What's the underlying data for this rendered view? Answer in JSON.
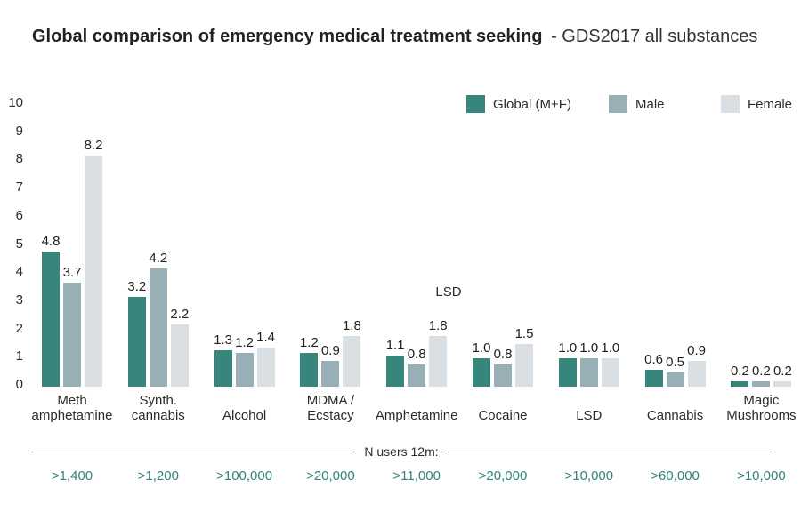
{
  "chart_data": {
    "type": "bar",
    "title": "Global comparison of emergency medical treatment seeking",
    "subtitle": "- GDS2017 all substances",
    "categories": [
      {
        "lines": [
          "Meth",
          "amphetamine"
        ]
      },
      {
        "lines": [
          "Synth.",
          "cannabis"
        ]
      },
      {
        "lines": [
          "Alcohol"
        ]
      },
      {
        "lines": [
          "MDMA /",
          "Ecstacy"
        ]
      },
      {
        "lines": [
          "Amphetamine"
        ]
      },
      {
        "lines": [
          "Cocaine"
        ]
      },
      {
        "lines": [
          "LSD"
        ]
      },
      {
        "lines": [
          "Cannabis"
        ]
      },
      {
        "lines": [
          "Magic",
          "Mushrooms"
        ]
      }
    ],
    "series": [
      {
        "name": "Global (M+F)",
        "color": "#37867c",
        "values": [
          4.8,
          3.2,
          1.3,
          1.2,
          1.1,
          1.0,
          1.0,
          0.6,
          0.2
        ]
      },
      {
        "name": "Male",
        "color": "#98b0b5",
        "values": [
          3.7,
          4.2,
          1.2,
          0.9,
          0.8,
          0.8,
          1.0,
          0.5,
          0.2
        ]
      },
      {
        "name": "Female",
        "color": "#d9dfe2",
        "values": [
          8.2,
          2.2,
          1.4,
          1.8,
          1.8,
          1.5,
          1.0,
          0.9,
          0.2
        ]
      }
    ],
    "ylim": [
      0,
      10
    ],
    "yticks": [
      0,
      1,
      2,
      3,
      4,
      5,
      6,
      7,
      8,
      9,
      10
    ],
    "grid": false,
    "legend_position": "top-right",
    "annotation": "LSD",
    "n_users_label": "N users 12m:",
    "n_users": [
      ">1,400",
      ">1,200",
      ">100,000",
      ">20,000",
      ">11,000",
      ">20,000",
      ">10,000",
      ">60,000",
      ">10,000"
    ]
  },
  "colors": {
    "accent_teal": "#37867c",
    "male_gray_blue": "#98b0b5",
    "female_light_gray": "#d9dfe2",
    "text_dark": "#2b2b2b",
    "n_users_teal": "#2f837a"
  }
}
